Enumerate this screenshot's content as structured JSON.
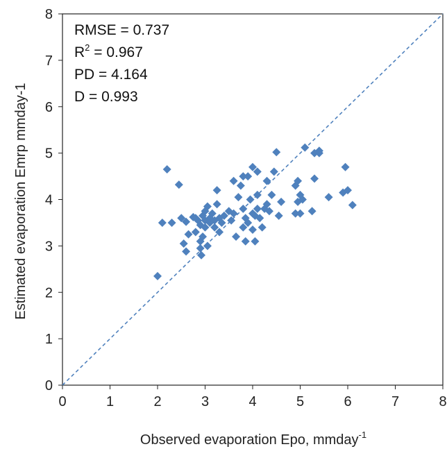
{
  "chart_data": {
    "type": "scatter",
    "xlabel": "Observed evaporation Epo, mmday",
    "xlabel_sup": "-1",
    "ylabel": "Estimated evaporation Emrp mmday-1",
    "xlim": [
      0,
      8
    ],
    "ylim": [
      0,
      8
    ],
    "xticks": [
      "0",
      "1",
      "2",
      "3",
      "4",
      "5",
      "6",
      "7",
      "8"
    ],
    "yticks": [
      "0",
      "1",
      "2",
      "3",
      "4",
      "5",
      "6",
      "7",
      "8"
    ],
    "grid": false,
    "marker": "diamond",
    "point_color": "#4f81bd",
    "reference_line": {
      "type": "1:1",
      "style": "dashed",
      "color": "#4f81bd"
    },
    "annotations": {
      "rmse": "RMSE = 0.737",
      "r2_prefix": "R",
      "r2_sup": "2",
      "r2_value": " = 0.967",
      "pd": "PD = 4.164",
      "d": "D = 0.993"
    },
    "points": [
      [
        2.0,
        2.35
      ],
      [
        2.2,
        4.65
      ],
      [
        2.1,
        3.5
      ],
      [
        2.3,
        3.5
      ],
      [
        2.45,
        4.32
      ],
      [
        2.5,
        3.6
      ],
      [
        2.55,
        3.05
      ],
      [
        2.6,
        3.52
      ],
      [
        2.6,
        2.88
      ],
      [
        2.65,
        3.25
      ],
      [
        2.75,
        3.62
      ],
      [
        2.8,
        3.6
      ],
      [
        2.8,
        3.3
      ],
      [
        2.85,
        3.55
      ],
      [
        2.9,
        3.45
      ],
      [
        2.9,
        3.1
      ],
      [
        2.9,
        2.95
      ],
      [
        2.92,
        2.8
      ],
      [
        2.95,
        3.2
      ],
      [
        2.95,
        3.65
      ],
      [
        3.0,
        3.4
      ],
      [
        3.0,
        3.55
      ],
      [
        3.0,
        3.75
      ],
      [
        3.05,
        3.0
      ],
      [
        3.05,
        3.85
      ],
      [
        3.1,
        3.5
      ],
      [
        3.1,
        3.6
      ],
      [
        3.15,
        3.7
      ],
      [
        3.2,
        3.4
      ],
      [
        3.2,
        3.55
      ],
      [
        3.25,
        4.2
      ],
      [
        3.25,
        3.9
      ],
      [
        3.3,
        3.6
      ],
      [
        3.3,
        3.3
      ],
      [
        3.35,
        3.5
      ],
      [
        3.4,
        3.65
      ],
      [
        3.5,
        3.75
      ],
      [
        3.55,
        3.55
      ],
      [
        3.6,
        3.7
      ],
      [
        3.6,
        4.4
      ],
      [
        3.65,
        3.2
      ],
      [
        3.7,
        4.05
      ],
      [
        3.75,
        4.3
      ],
      [
        3.8,
        4.5
      ],
      [
        3.8,
        3.8
      ],
      [
        3.8,
        3.4
      ],
      [
        3.85,
        3.1
      ],
      [
        3.85,
        3.6
      ],
      [
        3.9,
        3.5
      ],
      [
        3.9,
        4.5
      ],
      [
        3.95,
        4.0
      ],
      [
        4.0,
        3.7
      ],
      [
        4.0,
        3.35
      ],
      [
        4.0,
        4.7
      ],
      [
        4.05,
        3.65
      ],
      [
        4.05,
        3.1
      ],
      [
        4.1,
        3.8
      ],
      [
        4.1,
        4.1
      ],
      [
        4.1,
        4.6
      ],
      [
        4.15,
        3.6
      ],
      [
        4.2,
        3.4
      ],
      [
        4.25,
        3.8
      ],
      [
        4.3,
        4.4
      ],
      [
        4.3,
        3.9
      ],
      [
        4.35,
        3.75
      ],
      [
        4.4,
        4.1
      ],
      [
        4.45,
        4.6
      ],
      [
        4.5,
        5.02
      ],
      [
        4.55,
        3.65
      ],
      [
        4.6,
        3.95
      ],
      [
        4.9,
        3.7
      ],
      [
        4.9,
        4.3
      ],
      [
        4.95,
        4.4
      ],
      [
        4.95,
        3.95
      ],
      [
        5.0,
        3.7
      ],
      [
        5.0,
        4.1
      ],
      [
        5.05,
        4.0
      ],
      [
        5.1,
        5.12
      ],
      [
        5.25,
        3.75
      ],
      [
        5.3,
        5.0
      ],
      [
        5.3,
        4.45
      ],
      [
        5.4,
        5.0
      ],
      [
        5.4,
        5.05
      ],
      [
        5.6,
        4.05
      ],
      [
        5.9,
        4.15
      ],
      [
        5.95,
        4.7
      ],
      [
        6.0,
        4.2
      ],
      [
        6.1,
        3.88
      ]
    ]
  }
}
